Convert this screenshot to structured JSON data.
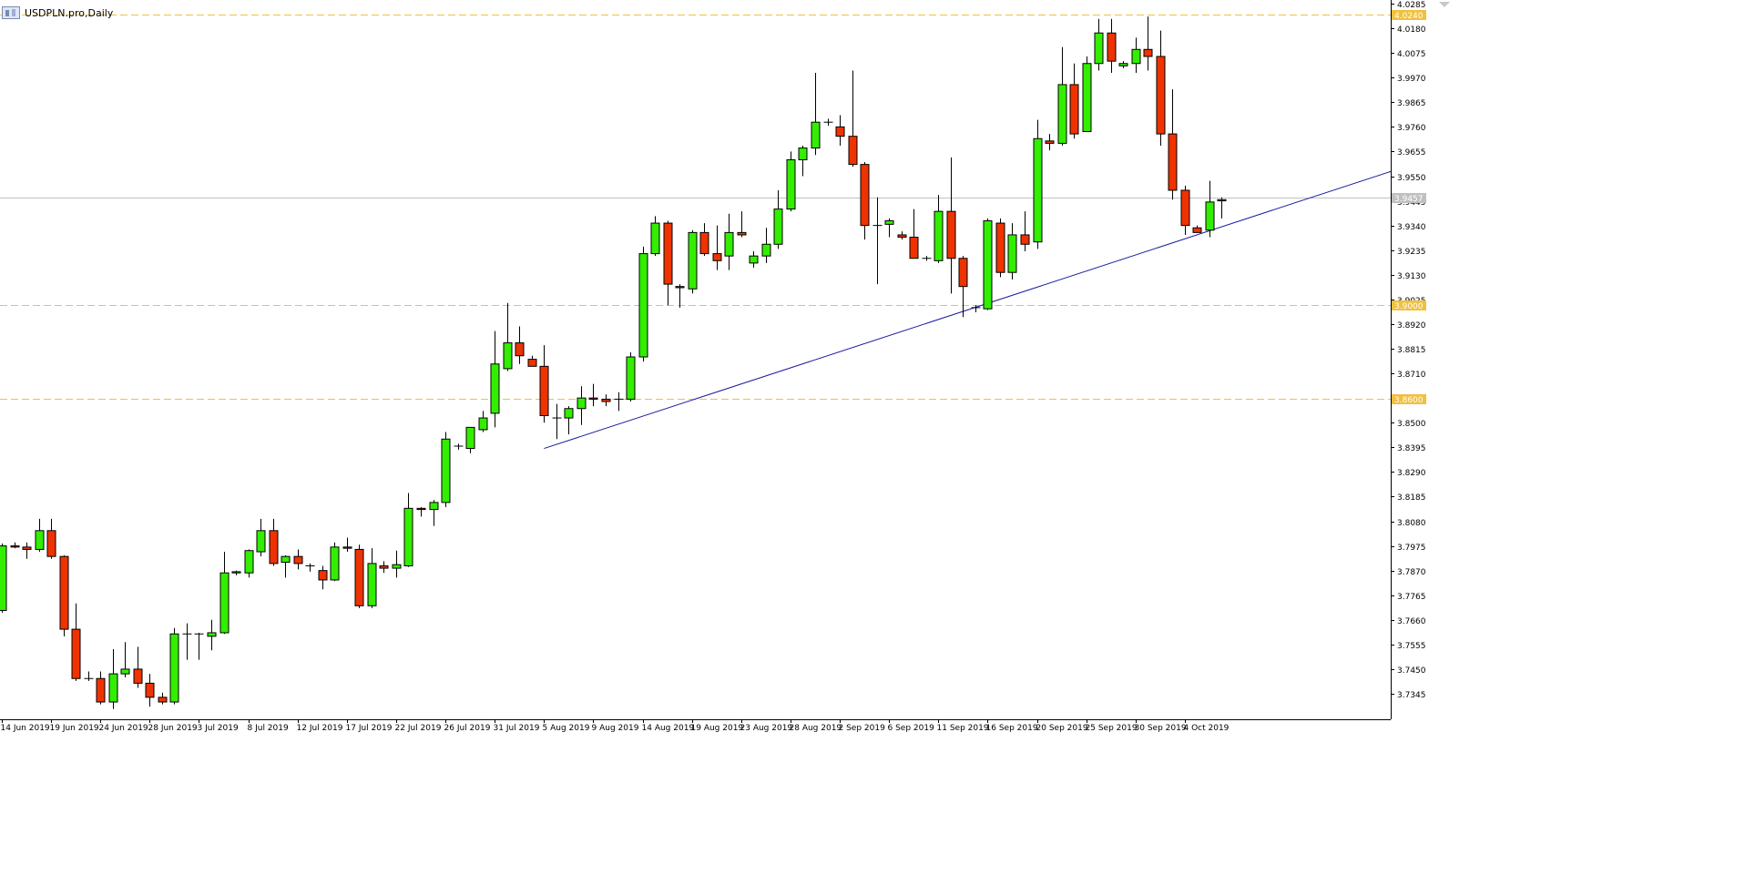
{
  "window": {
    "title": "USDPLN.pro,Daily",
    "icon": "chart-window-icon"
  },
  "chart_data": {
    "type": "candlestick",
    "symbol": "USDPLN.pro",
    "timeframe": "Daily",
    "ylim": [
      3.73,
      4.0285
    ],
    "y_ticks": [
      "4.0285",
      "4.0180",
      "4.0075",
      "3.9970",
      "3.9865",
      "3.9760",
      "3.9655",
      "3.9550",
      "3.9445",
      "3.9340",
      "3.9235",
      "3.9130",
      "3.9025",
      "3.8920",
      "3.8815",
      "3.8710",
      "3.8605",
      "3.8500",
      "3.8395",
      "3.8290",
      "3.8185",
      "3.8080",
      "3.7975",
      "3.7870",
      "3.7765",
      "3.7660",
      "3.7555",
      "3.7450",
      "3.7345"
    ],
    "x_ticks": [
      "14 Jun 2019",
      "19 Jun 2019",
      "24 Jun 2019",
      "28 Jun 2019",
      "3 Jul 2019",
      "8 Jul 2019",
      "12 Jul 2019",
      "17 Jul 2019",
      "22 Jul 2019",
      "26 Jul 2019",
      "31 Jul 2019",
      "5 Aug 2019",
      "9 Aug 2019",
      "14 Aug 2019",
      "19 Aug 2019",
      "23 Aug 2019",
      "28 Aug 2019",
      "2 Sep 2019",
      "6 Sep 2019",
      "11 Sep 2019",
      "16 Sep 2019",
      "20 Sep 2019",
      "25 Sep 2019",
      "30 Sep 2019",
      "4 Oct 2019"
    ],
    "x_tick_index": [
      0,
      4,
      8,
      12,
      16,
      20,
      24,
      28,
      32,
      36,
      40,
      44,
      48,
      52,
      56,
      60,
      64,
      68,
      72,
      76,
      80,
      84,
      88,
      92,
      96
    ],
    "bar_count": 100,
    "candles": [
      [
        3.77,
        3.7985,
        3.769,
        3.7975
      ],
      [
        3.7975,
        3.799,
        3.7965,
        3.797
      ],
      [
        3.797,
        3.799,
        3.792,
        3.796
      ],
      [
        3.796,
        3.809,
        3.795,
        3.804
      ],
      [
        3.804,
        3.809,
        3.792,
        3.793
      ],
      [
        3.793,
        3.7935,
        3.759,
        3.762
      ],
      [
        3.762,
        3.773,
        3.74,
        3.741
      ],
      [
        3.741,
        3.744,
        3.74,
        3.741
      ],
      [
        3.741,
        3.744,
        3.73,
        3.731
      ],
      [
        3.731,
        3.7535,
        3.728,
        3.743
      ],
      [
        3.743,
        3.7565,
        3.7415,
        3.745
      ],
      [
        3.745,
        3.7545,
        3.737,
        3.739
      ],
      [
        3.739,
        3.743,
        3.729,
        3.733
      ],
      [
        3.733,
        3.735,
        3.73,
        3.731
      ],
      [
        3.731,
        3.7625,
        3.73,
        3.76
      ],
      [
        3.76,
        3.7645,
        3.749,
        3.76
      ],
      [
        3.76,
        3.7605,
        3.749,
        3.76
      ],
      [
        3.759,
        3.766,
        3.753,
        3.7605
      ],
      [
        3.7605,
        3.795,
        3.76,
        3.786
      ],
      [
        3.786,
        3.787,
        3.785,
        3.7865
      ],
      [
        3.786,
        3.796,
        3.784,
        3.7955
      ],
      [
        3.795,
        3.809,
        3.793,
        3.804
      ],
      [
        3.804,
        3.809,
        3.789,
        3.79
      ],
      [
        3.7905,
        3.7935,
        3.784,
        3.793
      ],
      [
        3.793,
        3.796,
        3.7875,
        3.79
      ],
      [
        3.789,
        3.79,
        3.7865,
        3.789
      ],
      [
        3.787,
        3.789,
        3.779,
        3.783
      ],
      [
        3.783,
        3.799,
        3.7825,
        3.797
      ],
      [
        3.797,
        3.801,
        3.795,
        3.7965
      ],
      [
        3.796,
        3.798,
        3.771,
        3.772
      ],
      [
        3.772,
        3.7965,
        3.771,
        3.79
      ],
      [
        3.789,
        3.791,
        3.786,
        3.788
      ],
      [
        3.788,
        3.7955,
        3.784,
        3.7895
      ],
      [
        3.789,
        3.82,
        3.7885,
        3.8135
      ],
      [
        3.8135,
        3.814,
        3.81,
        3.813
      ],
      [
        3.813,
        3.817,
        3.806,
        3.816
      ],
      [
        3.816,
        3.846,
        3.814,
        3.843
      ],
      [
        3.84,
        3.841,
        3.8385,
        3.84
      ],
      [
        3.839,
        3.848,
        3.837,
        3.848
      ],
      [
        3.847,
        3.855,
        3.846,
        3.852
      ],
      [
        3.854,
        3.889,
        3.848,
        3.875
      ],
      [
        3.873,
        3.901,
        3.872,
        3.884
      ],
      [
        3.884,
        3.891,
        3.875,
        3.8785
      ],
      [
        3.877,
        3.8785,
        3.874,
        3.874
      ],
      [
        3.874,
        3.883,
        3.85,
        3.853
      ],
      [
        3.852,
        3.858,
        3.843,
        3.852
      ],
      [
        3.852,
        3.857,
        3.845,
        3.856
      ],
      [
        3.856,
        3.8655,
        3.849,
        3.8605
      ],
      [
        3.8605,
        3.8665,
        3.857,
        3.86
      ],
      [
        3.86,
        3.862,
        3.857,
        3.859
      ],
      [
        3.86,
        3.863,
        3.855,
        3.86
      ],
      [
        3.86,
        3.88,
        3.859,
        3.878
      ],
      [
        3.878,
        3.925,
        3.876,
        3.922
      ],
      [
        3.922,
        3.938,
        3.921,
        3.935
      ],
      [
        3.935,
        3.936,
        3.9,
        3.909
      ],
      [
        3.908,
        3.909,
        3.899,
        3.9075
      ],
      [
        3.907,
        3.932,
        3.905,
        3.931
      ],
      [
        3.931,
        3.935,
        3.921,
        3.922
      ],
      [
        3.922,
        3.934,
        3.915,
        3.919
      ],
      [
        3.921,
        3.939,
        3.915,
        3.931
      ],
      [
        3.931,
        3.94,
        3.929,
        3.93
      ],
      [
        3.918,
        3.923,
        3.916,
        3.921
      ],
      [
        3.921,
        3.933,
        3.918,
        3.926
      ],
      [
        3.926,
        3.949,
        3.924,
        3.941
      ],
      [
        3.941,
        3.9655,
        3.94,
        3.962
      ],
      [
        3.962,
        3.968,
        3.955,
        3.967
      ],
      [
        3.967,
        3.999,
        3.964,
        3.978
      ],
      [
        3.978,
        3.9795,
        3.9765,
        3.978
      ],
      [
        3.976,
        3.981,
        3.968,
        3.972
      ],
      [
        3.972,
        4.0,
        3.959,
        3.96
      ],
      [
        3.96,
        3.961,
        3.928,
        3.934
      ],
      [
        3.934,
        3.946,
        3.909,
        3.934
      ],
      [
        3.9345,
        3.937,
        3.929,
        3.936
      ],
      [
        3.93,
        3.9315,
        3.928,
        3.929
      ],
      [
        3.929,
        3.941,
        3.92,
        3.92
      ],
      [
        3.92,
        3.921,
        3.919,
        3.92
      ],
      [
        3.919,
        3.947,
        3.918,
        3.94
      ],
      [
        3.94,
        3.963,
        3.905,
        3.92
      ],
      [
        3.92,
        3.921,
        3.895,
        3.908
      ],
      [
        3.899,
        3.9,
        3.897,
        3.899
      ],
      [
        3.8985,
        3.937,
        3.898,
        3.936
      ],
      [
        3.935,
        3.937,
        3.912,
        3.914
      ],
      [
        3.914,
        3.935,
        3.911,
        3.93
      ],
      [
        3.93,
        3.94,
        3.923,
        3.926
      ],
      [
        3.927,
        3.979,
        3.924,
        3.971
      ],
      [
        3.97,
        3.973,
        3.966,
        3.969
      ],
      [
        3.969,
        4.01,
        3.968,
        3.994
      ],
      [
        3.994,
        4.003,
        3.971,
        3.973
      ],
      [
        3.974,
        4.006,
        3.974,
        4.003
      ],
      [
        4.003,
        4.022,
        4.0,
        4.016
      ],
      [
        4.016,
        4.022,
        3.999,
        4.004
      ],
      [
        4.002,
        4.004,
        4.001,
        4.003
      ],
      [
        4.003,
        4.014,
        3.999,
        4.009
      ],
      [
        4.009,
        4.023,
        4.0,
        4.006
      ],
      [
        4.006,
        4.017,
        3.968,
        3.973
      ],
      [
        3.973,
        3.992,
        3.945,
        3.949
      ],
      [
        3.949,
        3.951,
        3.93,
        3.934
      ],
      [
        3.933,
        3.934,
        3.931,
        3.931
      ],
      [
        3.932,
        3.953,
        3.929,
        3.944
      ],
      [
        3.9445,
        3.946,
        3.937,
        3.945
      ]
    ],
    "levels": [
      {
        "value": 4.024,
        "label": "4.0240",
        "color": "#f0c040"
      },
      {
        "value": 3.9,
        "label": "3.9000",
        "color": "#f0c040"
      },
      {
        "value": 3.86,
        "label": "3.8600",
        "color": "#f0c040"
      }
    ],
    "current_price": {
      "value": 3.9457,
      "label": "3.9457",
      "color": "#c0c0c0"
    },
    "trendline": {
      "from": {
        "date": "5 Aug 2019",
        "price": 3.839
      },
      "to": {
        "date": "right edge",
        "price": 3.957
      },
      "color": "#1a1aa0"
    },
    "colors": {
      "bull": "#33ee00",
      "bear": "#ee3300",
      "wick": "#000000",
      "axis": "#000000",
      "background": "#ffffff"
    }
  }
}
